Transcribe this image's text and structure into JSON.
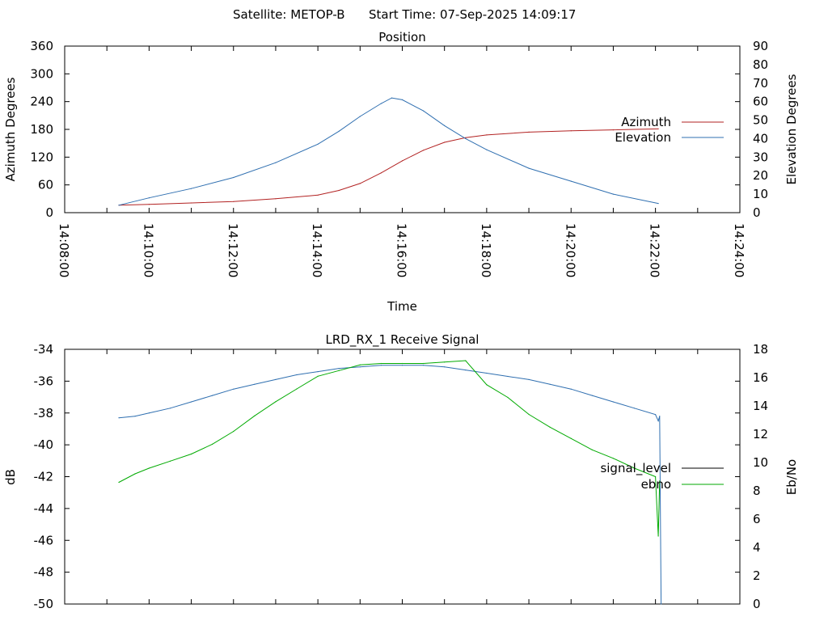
{
  "header": {
    "satellite": "Satellite: METOP-B",
    "start_time": "Start Time: 07-Sep-2025 14:09:17"
  },
  "chart_data": [
    {
      "type": "line",
      "title": "Position",
      "xlabel": "Time",
      "ylabel": "Azimuth Degrees",
      "y2label": "Elevation Degrees",
      "xlim": [
        "14:08:00",
        "14:24:00"
      ],
      "xticks": [
        "14:08:00",
        "14:10:00",
        "14:12:00",
        "14:14:00",
        "14:16:00",
        "14:18:00",
        "14:20:00",
        "14:22:00",
        "14:24:00"
      ],
      "ylim": [
        0,
        360
      ],
      "yticks": [
        0,
        60,
        120,
        180,
        240,
        300,
        360
      ],
      "y2lim": [
        0,
        90
      ],
      "y2ticks": [
        0,
        10,
        20,
        30,
        40,
        50,
        60,
        70,
        80,
        90
      ],
      "legend_position": "right",
      "series": [
        {
          "name": "Azimuth",
          "axis": "y",
          "color": "#b22222",
          "x": [
            "14:09:17",
            "14:10:00",
            "14:11:00",
            "14:12:00",
            "14:13:00",
            "14:14:00",
            "14:14:30",
            "14:15:00",
            "14:15:30",
            "14:16:00",
            "14:16:30",
            "14:17:00",
            "14:17:30",
            "14:18:00",
            "14:19:00",
            "14:20:00",
            "14:21:00",
            "14:22:04"
          ],
          "values": [
            16,
            18,
            21,
            24,
            30,
            38,
            48,
            63,
            86,
            112,
            135,
            152,
            162,
            168,
            174,
            177,
            179,
            181
          ]
        },
        {
          "name": "Elevation",
          "axis": "y2",
          "color": "#2f6fb0",
          "x": [
            "14:09:17",
            "14:10:00",
            "14:11:00",
            "14:12:00",
            "14:13:00",
            "14:14:00",
            "14:14:30",
            "14:15:00",
            "14:15:30",
            "14:15:45",
            "14:16:00",
            "14:16:30",
            "14:17:00",
            "14:17:30",
            "14:18:00",
            "14:19:00",
            "14:20:00",
            "14:21:00",
            "14:22:04"
          ],
          "values": [
            4,
            8,
            13,
            19,
            27,
            37,
            44,
            52,
            59,
            62,
            61,
            55,
            47,
            40,
            34,
            24,
            17,
            10,
            5
          ]
        }
      ]
    },
    {
      "type": "line",
      "title": "LRD_RX_1 Receive Signal",
      "xlabel": "",
      "ylabel": "dB",
      "y2label": "Eb/No",
      "xlim": [
        "14:08:00",
        "14:24:00"
      ],
      "ylim": [
        -50,
        -34
      ],
      "yticks": [
        -50,
        -48,
        -46,
        -44,
        -42,
        -40,
        -38,
        -36,
        -34
      ],
      "y2lim": [
        0,
        18
      ],
      "y2ticks": [
        0,
        2,
        4,
        6,
        8,
        10,
        12,
        14,
        16,
        18
      ],
      "legend_position": "right",
      "series": [
        {
          "name": "signal_level",
          "axis": "y",
          "color": "#2f6fb0",
          "x": [
            "14:09:17",
            "14:09:40",
            "14:10:00",
            "14:10:30",
            "14:11:00",
            "14:11:30",
            "14:12:00",
            "14:12:30",
            "14:13:00",
            "14:13:30",
            "14:14:00",
            "14:14:30",
            "14:15:00",
            "14:15:30",
            "14:16:00",
            "14:16:30",
            "14:17:00",
            "14:17:30",
            "14:18:00",
            "14:18:30",
            "14:19:00",
            "14:19:30",
            "14:20:00",
            "14:20:30",
            "14:21:00",
            "14:21:30",
            "14:22:00",
            "14:22:04",
            "14:22:06",
            "14:22:08"
          ],
          "values": [
            -38.3,
            -38.2,
            -38.0,
            -37.7,
            -37.3,
            -36.9,
            -36.5,
            -36.2,
            -35.9,
            -35.6,
            -35.4,
            -35.2,
            -35.1,
            -35.0,
            -35.0,
            -35.0,
            -35.1,
            -35.3,
            -35.5,
            -35.7,
            -35.9,
            -36.2,
            -36.5,
            -36.9,
            -37.3,
            -37.7,
            -38.1,
            -38.5,
            -38.2,
            -50.0
          ]
        },
        {
          "name": "ebno",
          "axis": "y2",
          "color": "#00aa00",
          "x": [
            "14:09:17",
            "14:09:40",
            "14:10:00",
            "14:10:30",
            "14:11:00",
            "14:11:30",
            "14:12:00",
            "14:12:30",
            "14:13:00",
            "14:13:30",
            "14:14:00",
            "14:14:30",
            "14:15:00",
            "14:15:30",
            "14:16:00",
            "14:16:30",
            "14:17:00",
            "14:17:30",
            "14:18:00",
            "14:18:30",
            "14:19:00",
            "14:19:30",
            "14:20:00",
            "14:20:30",
            "14:21:00",
            "14:21:30",
            "14:22:00",
            "14:22:04",
            "14:22:06"
          ],
          "values": [
            8.6,
            9.2,
            9.6,
            10.1,
            10.6,
            11.3,
            12.2,
            13.3,
            14.3,
            15.2,
            16.1,
            16.5,
            16.9,
            17.0,
            17.0,
            17.0,
            17.1,
            17.2,
            15.5,
            14.6,
            13.4,
            12.5,
            11.7,
            10.9,
            10.3,
            9.6,
            9.0,
            4.8,
            8.7
          ]
        }
      ]
    }
  ]
}
